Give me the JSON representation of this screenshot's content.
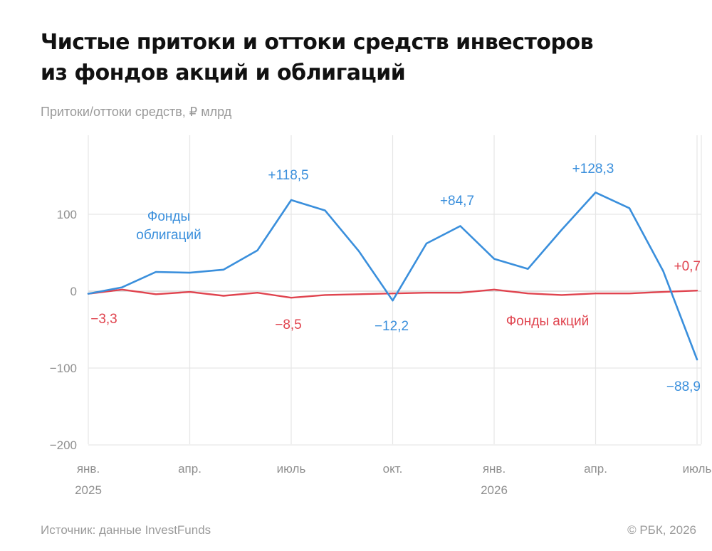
{
  "title_lines": [
    "Чистые притоки и оттоки средств инвесторов",
    "из фондов акций и облигаций"
  ],
  "subtitle": "Притоки/оттоки средств, ₽ млрд",
  "footer": {
    "source": "Источник: данные InvestFunds",
    "copyright": "© РБК, 2026"
  },
  "colors": {
    "bonds": "#3a8fdc",
    "stocks": "#e0444f",
    "grid": "#e6e6e6",
    "text": "#111111",
    "muted": "#9a9a9a"
  },
  "chart_data": {
    "type": "line",
    "title": "Чистые притоки и оттоки средств инвесторов из фондов акций и облигаций",
    "ylabel": "Притоки/оттоки средств, ₽ млрд",
    "xlabel": "",
    "ylim": [
      -200,
      160
    ],
    "yticks": [
      100,
      0,
      -100,
      -200
    ],
    "ytick_labels": [
      "100",
      "0",
      "−100",
      "−200"
    ],
    "grid": true,
    "x": [
      "2025-01",
      "2025-02",
      "2025-03",
      "2025-04",
      "2025-05",
      "2025-06",
      "2025-07",
      "2025-08",
      "2025-09",
      "2025-10",
      "2025-11",
      "2025-12",
      "2026-01",
      "2026-02",
      "2026-03",
      "2026-04",
      "2026-05",
      "2026-06",
      "2026-07"
    ],
    "xticks": [
      {
        "x": "2025-01",
        "label": "янв.",
        "sublabel": "2025"
      },
      {
        "x": "2025-04",
        "label": "апр.",
        "sublabel": ""
      },
      {
        "x": "2025-07",
        "label": "июль",
        "sublabel": ""
      },
      {
        "x": "2025-10",
        "label": "окт.",
        "sublabel": ""
      },
      {
        "x": "2026-01",
        "label": "янв.",
        "sublabel": "2026"
      },
      {
        "x": "2026-04",
        "label": "апр.",
        "sublabel": ""
      },
      {
        "x": "2026-07",
        "label": "июль",
        "sublabel": ""
      }
    ],
    "series": [
      {
        "name": "Фонды облигаций",
        "color": "#3a8fdc",
        "values": [
          -3.3,
          5,
          25,
          24,
          28,
          53,
          118.5,
          105,
          52,
          -12.2,
          62,
          84.7,
          42,
          29,
          80,
          128.3,
          108,
          26,
          -88.9
        ]
      },
      {
        "name": "Фонды акций",
        "color": "#e0444f",
        "values": [
          -3.3,
          2,
          -4,
          -1,
          -6,
          -2,
          -8.5,
          -5,
          -4,
          -3,
          -2,
          -2,
          2,
          -3,
          -5,
          -3,
          -3,
          -1,
          0.7
        ]
      }
    ],
    "legend": [
      {
        "series": "Фонды облигаций",
        "lines": [
          "Фонды",
          "облигаций"
        ]
      },
      {
        "series": "Фонды акций",
        "lines": [
          "Фонды акций"
        ]
      }
    ],
    "annotations": [
      {
        "series": 0,
        "index": 6,
        "text": "+118,5"
      },
      {
        "series": 0,
        "index": 11,
        "text": "+84,7"
      },
      {
        "series": 0,
        "index": 15,
        "text": "+128,3"
      },
      {
        "series": 0,
        "index": 9,
        "text": "−12,2"
      },
      {
        "series": 0,
        "index": 18,
        "text": "−88,9"
      },
      {
        "series": 1,
        "index": 0,
        "text": "−3,3"
      },
      {
        "series": 1,
        "index": 6,
        "text": "−8,5"
      },
      {
        "series": 1,
        "index": 18,
        "text": "+0,7"
      }
    ]
  }
}
